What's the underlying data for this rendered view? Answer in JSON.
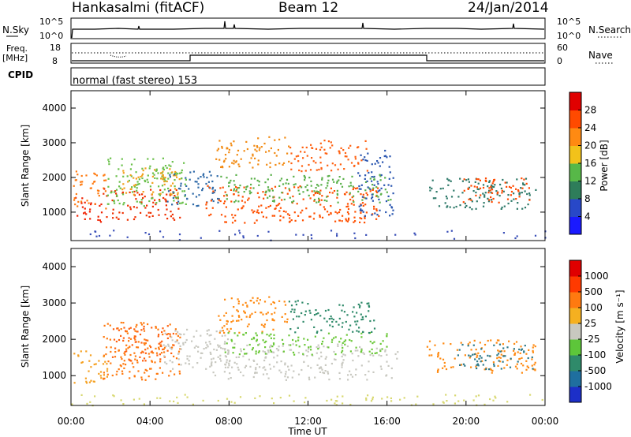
{
  "header": {
    "station": "Hankasalmi (fitACF)",
    "beam": "Beam 12",
    "date": "24/Jan/2014"
  },
  "summary_panels": {
    "noise": {
      "left_label": "N.Sky",
      "left_ticks": [
        "10^5",
        "10^0"
      ],
      "right_label": "N.Search",
      "right_ticks": [
        "10^5",
        "10^0"
      ]
    },
    "freq": {
      "left_label_1": "Freq.",
      "left_label_2": "[MHz]",
      "left_ticks": [
        "18",
        "8"
      ],
      "right_label": "Nave",
      "right_ticks": [
        "60",
        "0"
      ]
    },
    "cpid": {
      "label": "CPID",
      "text": "normal (fast stereo) 153"
    }
  },
  "colorbars": {
    "power": {
      "label": "Power [dB]",
      "ticks": [
        "28",
        "24",
        "20",
        "16",
        "12",
        "8",
        "4"
      ],
      "colors": [
        "#1a1aff",
        "#2848c8",
        "#2e7d5a",
        "#57b848",
        "#f2c21a",
        "#ff8a12",
        "#ff4a00",
        "#e00000"
      ]
    },
    "velocity": {
      "label": "Velocity [m s⁻¹]",
      "ticks": [
        "1000",
        "500",
        "100",
        "25",
        "-25",
        "-100",
        "-500",
        "-1000"
      ],
      "colors": [
        "#1c2fc8",
        "#1f6f9f",
        "#2f8a6a",
        "#5dc63a",
        "#c8c8c0",
        "#f5b020",
        "#ff7a10",
        "#ff3a00",
        "#e00000"
      ]
    }
  },
  "chart_data": [
    {
      "type": "heatmap",
      "title": "Power",
      "ylabel": "Slant Range [km]",
      "ylim": [
        180,
        4500
      ],
      "yticks": [
        "4000",
        "3000",
        "2000",
        "1000"
      ],
      "xlim": [
        0,
        24
      ],
      "blobs": [
        {
          "t0": 0.2,
          "t1": 1.6,
          "r0": 700,
          "r1": 1500,
          "c": "#f02000"
        },
        {
          "t0": 0.1,
          "t1": 1.8,
          "r0": 1100,
          "r1": 2200,
          "c": "#ff7a10"
        },
        {
          "t0": 1.6,
          "t1": 5.5,
          "r0": 800,
          "r1": 1700,
          "c": "#f03000"
        },
        {
          "t0": 1.8,
          "t1": 5.8,
          "r0": 1200,
          "r1": 2600,
          "c": "#6ac04a"
        },
        {
          "t0": 2.5,
          "t1": 5.5,
          "r0": 1500,
          "r1": 2300,
          "c": "#f2a01a"
        },
        {
          "t0": 4.8,
          "t1": 7.5,
          "r0": 1200,
          "r1": 2200,
          "c": "#2f6aa8"
        },
        {
          "t0": 6.8,
          "t1": 15.6,
          "r0": 700,
          "r1": 1800,
          "c": "#ff5000"
        },
        {
          "t0": 7.3,
          "t1": 11.0,
          "r0": 2300,
          "r1": 3200,
          "c": "#f28a12"
        },
        {
          "t0": 7.5,
          "t1": 16.2,
          "r0": 1300,
          "r1": 2100,
          "c": "#5ab04a"
        },
        {
          "t0": 11.0,
          "t1": 15.0,
          "r0": 2200,
          "r1": 3100,
          "c": "#ff6010"
        },
        {
          "t0": 14.5,
          "t1": 16.3,
          "r0": 900,
          "r1": 2800,
          "c": "#2a56b0"
        },
        {
          "t0": 18.0,
          "t1": 23.5,
          "r0": 1100,
          "r1": 2000,
          "c": "#2f7a6a"
        },
        {
          "t0": 19.8,
          "t1": 23.4,
          "r0": 1300,
          "r1": 2000,
          "c": "#ff4a00"
        },
        {
          "t0": 0.0,
          "t1": 24.0,
          "r0": 200,
          "r1": 500,
          "c": "#3a4fb8"
        }
      ]
    },
    {
      "type": "heatmap",
      "title": "Velocity",
      "ylabel": "Slant Range [km]",
      "ylim": [
        180,
        4500
      ],
      "yticks": [
        "4000",
        "3000",
        "2000",
        "1000"
      ],
      "xlim": [
        0,
        24
      ],
      "blobs": [
        {
          "t0": 0.1,
          "t1": 1.8,
          "r0": 800,
          "r1": 1700,
          "c": "#f5a020"
        },
        {
          "t0": 1.6,
          "t1": 5.5,
          "r0": 900,
          "r1": 2500,
          "c": "#ff7a10"
        },
        {
          "t0": 2.0,
          "t1": 5.2,
          "r0": 1400,
          "r1": 2400,
          "c": "#ff6010"
        },
        {
          "t0": 4.5,
          "t1": 8.0,
          "r0": 1200,
          "r1": 2300,
          "c": "#c8c8c0"
        },
        {
          "t0": 7.0,
          "t1": 16.5,
          "r0": 900,
          "r1": 1900,
          "c": "#c8c8c0"
        },
        {
          "t0": 7.4,
          "t1": 11.0,
          "r0": 2200,
          "r1": 3200,
          "c": "#ff8a12"
        },
        {
          "t0": 7.6,
          "t1": 16.0,
          "r0": 1600,
          "r1": 2200,
          "c": "#6cc83a"
        },
        {
          "t0": 11.0,
          "t1": 15.5,
          "r0": 2200,
          "r1": 3100,
          "c": "#2f8a6a"
        },
        {
          "t0": 18.0,
          "t1": 23.5,
          "r0": 1100,
          "r1": 2000,
          "c": "#ff8a12"
        },
        {
          "t0": 19.5,
          "t1": 23.4,
          "r0": 1200,
          "r1": 1900,
          "c": "#2f7a8a"
        },
        {
          "t0": 0.0,
          "t1": 24.0,
          "r0": 200,
          "r1": 500,
          "c": "#d8d870"
        }
      ]
    }
  ],
  "xaxis": {
    "label": "Time UT",
    "ticks": [
      "00:00",
      "04:00",
      "08:00",
      "12:00",
      "16:00",
      "20:00",
      "00:00"
    ]
  }
}
